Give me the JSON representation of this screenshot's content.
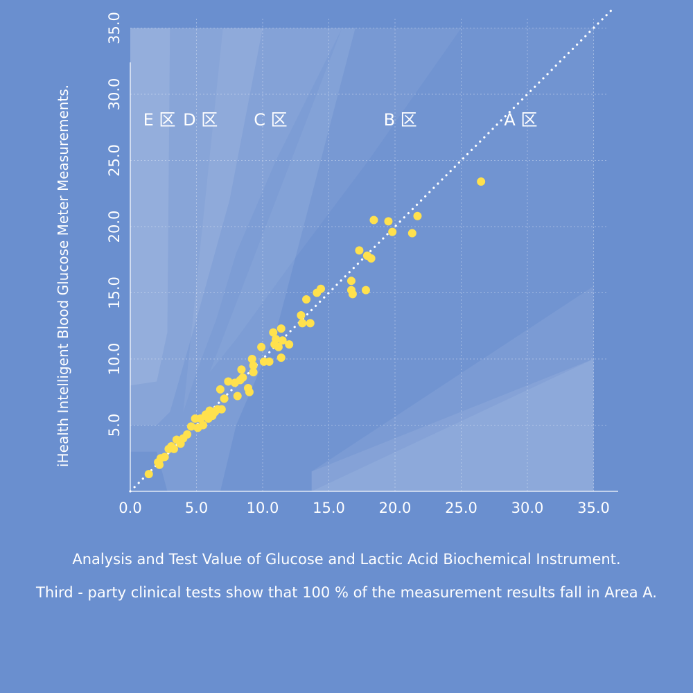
{
  "colors": {
    "background": "#6a8fcf",
    "points": "#ffe14d",
    "text": "#ffffff"
  },
  "captions": {
    "line1": "Analysis and Test Value of Glucose and Lactic Acid Biochemical Instrument.",
    "line2": "Third - party clinical tests show that 100 % of the measurement results fall in Area A."
  },
  "chart_data": {
    "type": "scatter",
    "ylabel": "iHealth Intelligent Blood Glucose Meter Measurements.",
    "xlabel": "",
    "xlim": [
      0,
      35
    ],
    "ylim": [
      0,
      35
    ],
    "x_ticks": [
      "0.0",
      "5.0",
      "10.0",
      "15.0",
      "20.0",
      "25.0",
      "30.0",
      "35.0"
    ],
    "y_ticks": [
      "5.0",
      "10.0",
      "15.0",
      "20.0",
      "25.0",
      "30.0",
      "35.0"
    ],
    "grid": "dashed",
    "reference_line": "y = x (dotted)",
    "zones": [
      "E 区",
      "D 区",
      "C 区",
      "B 区",
      "A 区"
    ],
    "points": [
      [
        1.4,
        1.3
      ],
      [
        2.1,
        2.2
      ],
      [
        2.2,
        2.0
      ],
      [
        2.3,
        2.5
      ],
      [
        2.6,
        2.6
      ],
      [
        2.9,
        3.2
      ],
      [
        3.1,
        3.4
      ],
      [
        3.3,
        3.2
      ],
      [
        3.5,
        3.9
      ],
      [
        3.8,
        3.6
      ],
      [
        4.0,
        4.0
      ],
      [
        4.3,
        4.3
      ],
      [
        4.6,
        4.9
      ],
      [
        4.9,
        5.5
      ],
      [
        5.1,
        4.8
      ],
      [
        5.3,
        5.5
      ],
      [
        5.5,
        5.0
      ],
      [
        5.7,
        5.8
      ],
      [
        5.9,
        5.5
      ],
      [
        6.0,
        6.1
      ],
      [
        6.2,
        5.7
      ],
      [
        6.4,
        6.0
      ],
      [
        6.6,
        6.2
      ],
      [
        6.9,
        6.2
      ],
      [
        6.8,
        7.7
      ],
      [
        7.1,
        7.0
      ],
      [
        7.4,
        8.3
      ],
      [
        7.9,
        8.2
      ],
      [
        8.1,
        7.2
      ],
      [
        8.3,
        8.4
      ],
      [
        8.4,
        9.2
      ],
      [
        8.5,
        8.6
      ],
      [
        8.9,
        7.8
      ],
      [
        9.0,
        7.5
      ],
      [
        9.2,
        10.0
      ],
      [
        9.3,
        9.5
      ],
      [
        9.3,
        9.0
      ],
      [
        9.9,
        10.9
      ],
      [
        10.1,
        9.8
      ],
      [
        10.5,
        9.8
      ],
      [
        10.8,
        12.0
      ],
      [
        10.9,
        11.1
      ],
      [
        11.0,
        11.5
      ],
      [
        11.2,
        10.9
      ],
      [
        11.4,
        12.3
      ],
      [
        11.4,
        10.1
      ],
      [
        11.5,
        11.4
      ],
      [
        12.0,
        11.1
      ],
      [
        12.9,
        13.3
      ],
      [
        13.0,
        12.7
      ],
      [
        13.3,
        14.5
      ],
      [
        13.6,
        12.7
      ],
      [
        14.1,
        15.0
      ],
      [
        14.4,
        15.3
      ],
      [
        16.7,
        15.9
      ],
      [
        16.7,
        15.2
      ],
      [
        16.8,
        14.9
      ],
      [
        17.3,
        18.2
      ],
      [
        17.8,
        15.2
      ],
      [
        17.9,
        17.8
      ],
      [
        18.2,
        17.6
      ],
      [
        18.4,
        20.5
      ],
      [
        19.5,
        20.4
      ],
      [
        19.8,
        19.6
      ],
      [
        21.3,
        19.5
      ],
      [
        21.7,
        20.8
      ],
      [
        26.5,
        23.4
      ]
    ]
  }
}
